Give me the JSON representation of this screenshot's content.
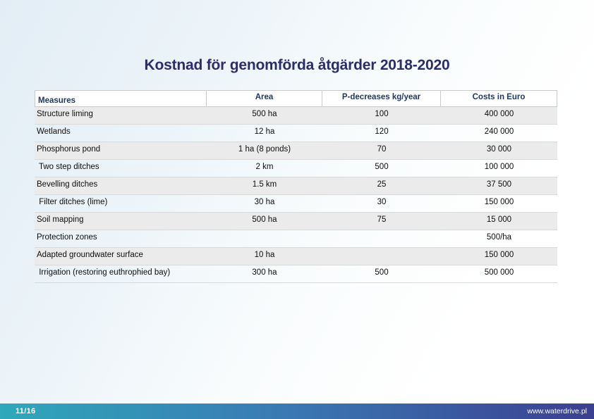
{
  "slide": {
    "title": "Kostnad för genomförda åtgärder 2018-2020",
    "page_number": "11/16",
    "website": "www.waterdrive.pl"
  },
  "colors": {
    "title_text": "#2b2d6b",
    "header_text": "#1f3864",
    "row_shade": "#ebebeb",
    "bg_tint_top_left": "#e2edf5",
    "footer_left": "#2fa8ba",
    "footer_mid": "#3a79b4",
    "footer_right": "#3b3f90"
  },
  "table": {
    "columns": [
      "Measures",
      "Area",
      "P-decreases kg/year",
      "Costs in Euro"
    ],
    "rows": [
      {
        "measure": "Structure liming",
        "area": "500 ha",
        "p_decrease": "100",
        "cost": "400 000"
      },
      {
        "measure": "Wetlands",
        "area": "12 ha",
        "p_decrease": "120",
        "cost": "240 000"
      },
      {
        "measure": "Phosphorus pond",
        "area": "1 ha (8 ponds)",
        "p_decrease": "70",
        "cost": "30 000"
      },
      {
        "measure": " Two step ditches",
        "area": "2 km",
        "p_decrease": "500",
        "cost": "100 000"
      },
      {
        "measure": "Bevelling ditches",
        "area": "1.5 km",
        "p_decrease": "25",
        "cost": "37 500"
      },
      {
        "measure": " Filter ditches (lime)",
        "area": "30 ha",
        "p_decrease": "30",
        "cost": "150 000"
      },
      {
        "measure": "Soil mapping",
        "area": "500 ha",
        "p_decrease": "75",
        "cost": "15 000"
      },
      {
        "measure": "Protection zones",
        "area": "",
        "p_decrease": "",
        "cost": "500/ha"
      },
      {
        "measure": "Adapted groundwater surface",
        "area": "10 ha",
        "p_decrease": "",
        "cost": "150 000"
      },
      {
        "measure": " Irrigation (restoring euthrophied bay)",
        "area": "300 ha",
        "p_decrease": "500",
        "cost": "500 000"
      }
    ]
  }
}
